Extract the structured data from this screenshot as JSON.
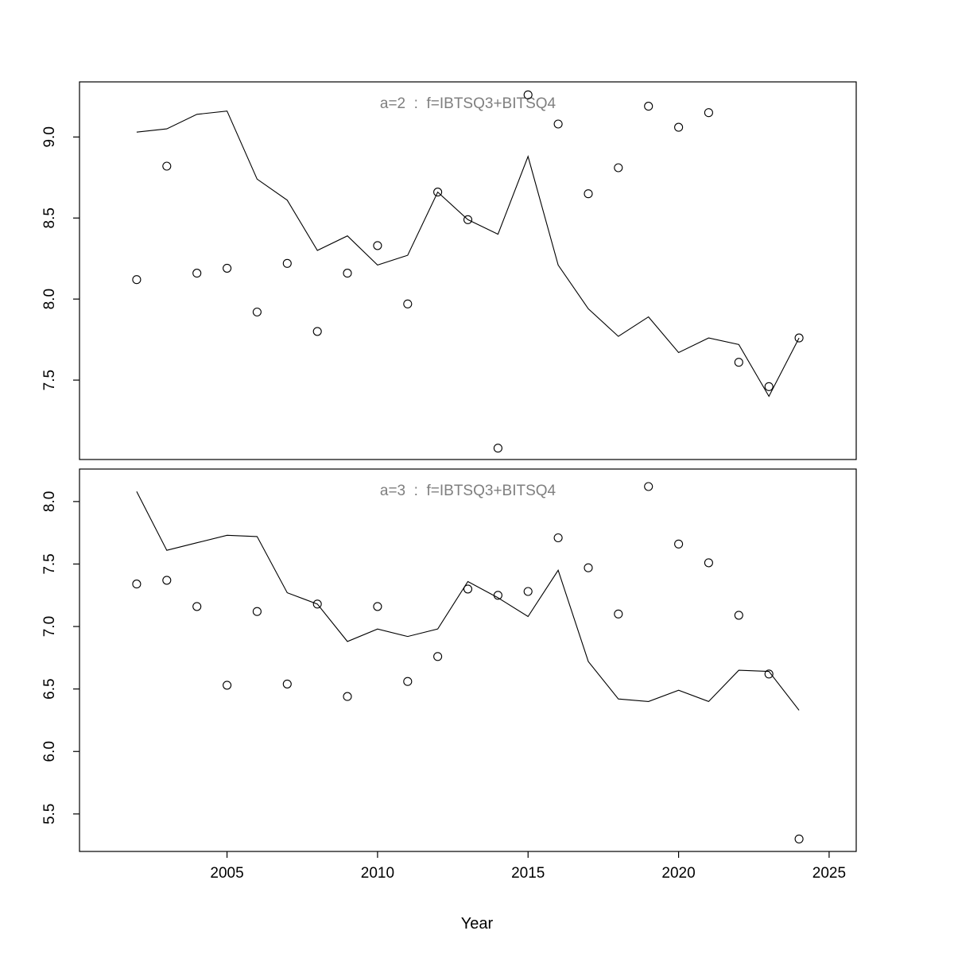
{
  "figure": {
    "background": "#ffffff",
    "text_color": "#000000",
    "title_color": "#7f7f7f",
    "xlabel": "Year"
  },
  "chart_data": [
    {
      "type": "line",
      "title": "a=2  :  f=IBTSQ3+BITSQ4",
      "xlabel": "Year",
      "ylabel": "",
      "grid": false,
      "legend": "none",
      "xlim": [
        2000.1,
        2025.9
      ],
      "ylim": [
        7.01,
        9.34
      ],
      "xticks": [
        2005,
        2010,
        2015,
        2020,
        2025
      ],
      "xtick_labels": [
        "2005",
        "2010",
        "2015",
        "2020",
        "2025"
      ],
      "show_x_axis": false,
      "yticks": [
        7.5,
        8.0,
        8.5,
        9.0
      ],
      "ytick_labels": [
        "7.5",
        "8.0",
        "8.5",
        "9.0"
      ],
      "x": [
        2002,
        2003,
        2004,
        2005,
        2006,
        2007,
        2008,
        2009,
        2010,
        2011,
        2012,
        2013,
        2014,
        2015,
        2016,
        2017,
        2018,
        2019,
        2020,
        2021,
        2022,
        2023,
        2024
      ],
      "series": [
        {
          "name": "model-line",
          "style": "solid-line",
          "values": [
            9.03,
            9.05,
            9.14,
            9.16,
            8.74,
            8.61,
            8.3,
            8.39,
            8.21,
            8.27,
            8.66,
            8.49,
            8.4,
            8.88,
            8.21,
            7.94,
            7.77,
            7.89,
            7.67,
            7.76,
            7.72,
            7.4,
            7.76
          ]
        },
        {
          "name": "observed-points",
          "style": "open-circle",
          "values": [
            8.12,
            8.82,
            8.16,
            8.19,
            7.92,
            8.22,
            7.8,
            8.16,
            8.33,
            7.97,
            8.66,
            8.49,
            7.08,
            9.26,
            9.08,
            8.65,
            8.81,
            9.19,
            9.06,
            9.15,
            7.61,
            7.46,
            7.76
          ]
        }
      ]
    },
    {
      "type": "line",
      "title": "a=3  :  f=IBTSQ3+BITSQ4",
      "xlabel": "Year",
      "ylabel": "",
      "grid": false,
      "legend": "none",
      "xlim": [
        2000.1,
        2025.9
      ],
      "ylim": [
        5.2,
        8.26
      ],
      "xticks": [
        2005,
        2010,
        2015,
        2020,
        2025
      ],
      "xtick_labels": [
        "2005",
        "2010",
        "2015",
        "2020",
        "2025"
      ],
      "show_x_axis": true,
      "yticks": [
        5.5,
        6.0,
        6.5,
        7.0,
        7.5,
        8.0
      ],
      "ytick_labels": [
        "5.5",
        "6.0",
        "6.5",
        "7.0",
        "7.5",
        "8.0"
      ],
      "x": [
        2002,
        2003,
        2004,
        2005,
        2006,
        2007,
        2008,
        2009,
        2010,
        2011,
        2012,
        2013,
        2014,
        2015,
        2016,
        2017,
        2018,
        2019,
        2020,
        2021,
        2022,
        2023,
        2024
      ],
      "series": [
        {
          "name": "model-line",
          "style": "solid-line",
          "values": [
            8.08,
            7.61,
            7.67,
            7.73,
            7.72,
            7.27,
            7.18,
            6.88,
            6.98,
            6.92,
            6.98,
            7.36,
            7.23,
            7.08,
            7.45,
            6.72,
            6.42,
            6.4,
            6.49,
            6.4,
            6.65,
            6.64,
            6.33
          ]
        },
        {
          "name": "observed-points",
          "style": "open-circle",
          "values": [
            7.34,
            7.37,
            7.16,
            6.53,
            7.12,
            6.54,
            7.18,
            6.44,
            7.16,
            6.56,
            6.76,
            7.3,
            7.25,
            7.28,
            7.71,
            7.47,
            7.1,
            8.12,
            7.66,
            7.51,
            7.09,
            6.62,
            5.3
          ]
        }
      ]
    }
  ]
}
